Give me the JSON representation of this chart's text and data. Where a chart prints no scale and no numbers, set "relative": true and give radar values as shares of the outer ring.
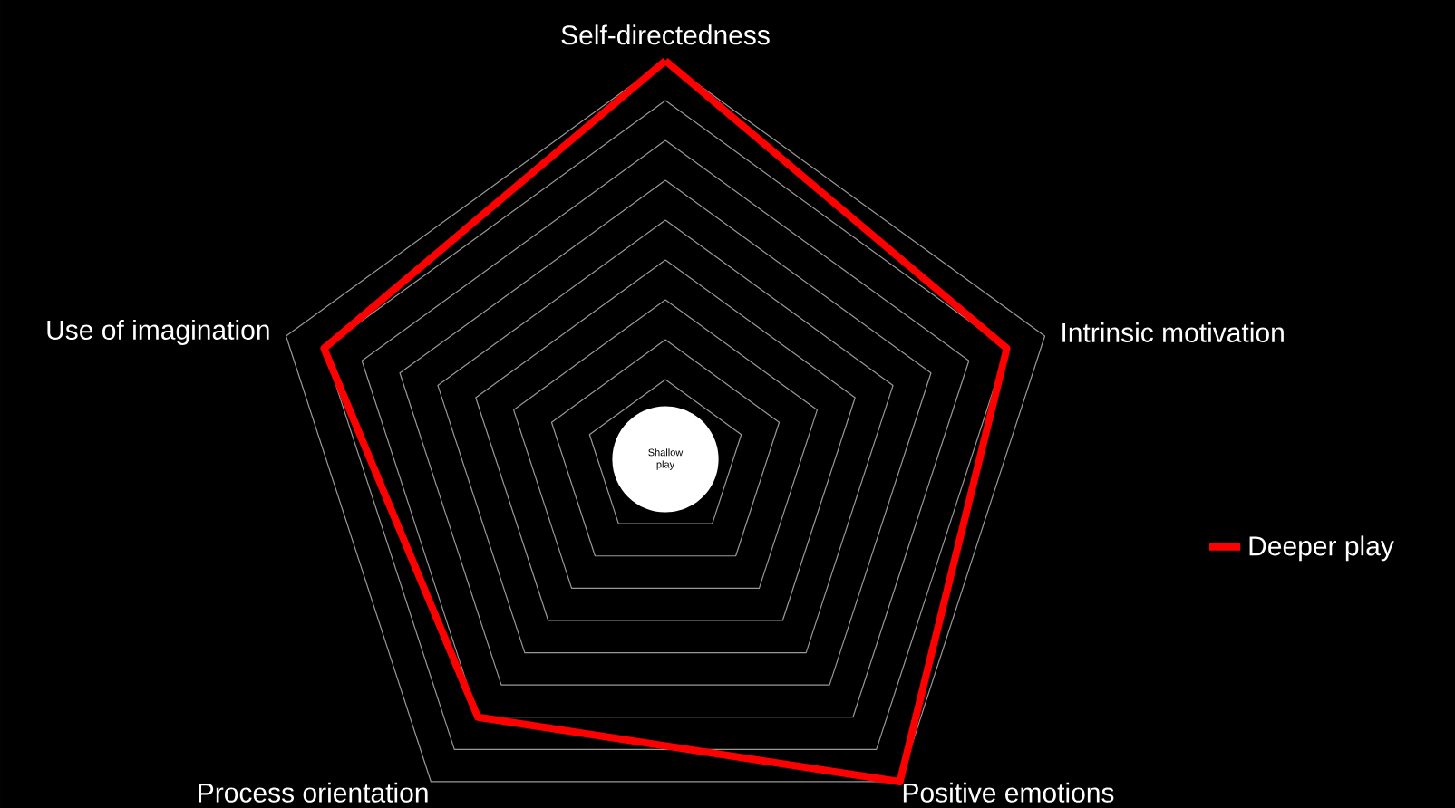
{
  "chart_data": {
    "type": "radar",
    "categories": [
      "Self-directedness",
      "Intrinsic motivation",
      "Positive emotions",
      "Process orientation",
      "Use of imagination"
    ],
    "relative": true,
    "series": [
      {
        "name": "Deeper play",
        "color": "#ff0000",
        "values": [
          1.0,
          0.9,
          1.0,
          0.8,
          0.9
        ]
      }
    ],
    "annotations": [
      "Shallow play"
    ],
    "grid": true,
    "legend": "right"
  }
}
